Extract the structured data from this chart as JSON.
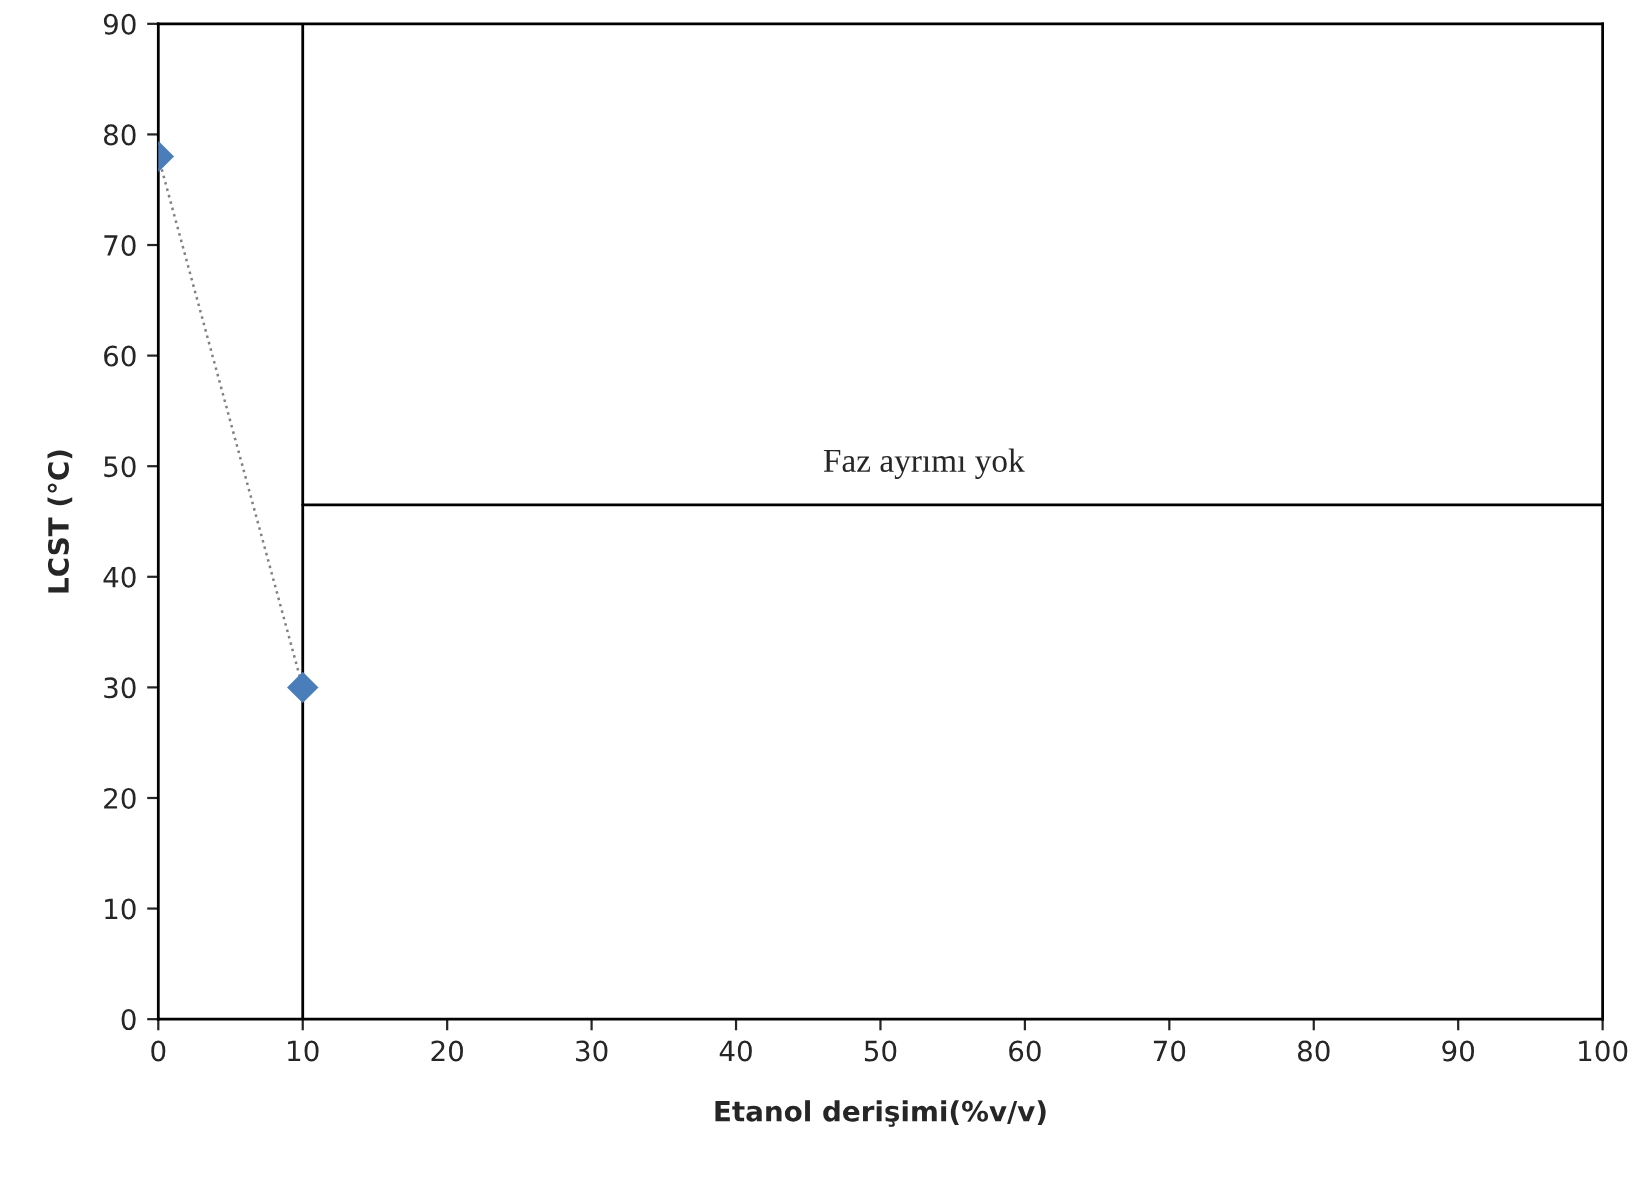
{
  "chart_data": {
    "type": "line",
    "xlabel": "Etanol derişimi(%v/v)",
    "ylabel": "LCST (°C)",
    "series": [
      {
        "x": [
          0,
          10
        ],
        "values": [
          78,
          30
        ],
        "color": "#4a7ebb",
        "marker": "diamond",
        "line_style": "dotted"
      },
      {
        "x": [
          10,
          100
        ],
        "values": [
          46.5,
          46.5
        ],
        "color": "#000000",
        "marker": "none",
        "line_style": "solid"
      }
    ],
    "ref_lines": [
      {
        "axis": "x",
        "value": 10,
        "color": "#000000",
        "line_style": "solid"
      }
    ],
    "annotations": [
      "Faz ayrımı yok"
    ],
    "xlim": [
      0,
      100
    ],
    "ylim": [
      0,
      90
    ],
    "xticks": [
      0,
      10,
      20,
      30,
      40,
      50,
      60,
      70,
      80,
      90,
      100
    ],
    "yticks": [
      0,
      10,
      20,
      30,
      40,
      50,
      60,
      70,
      80,
      90
    ],
    "grid": false
  }
}
